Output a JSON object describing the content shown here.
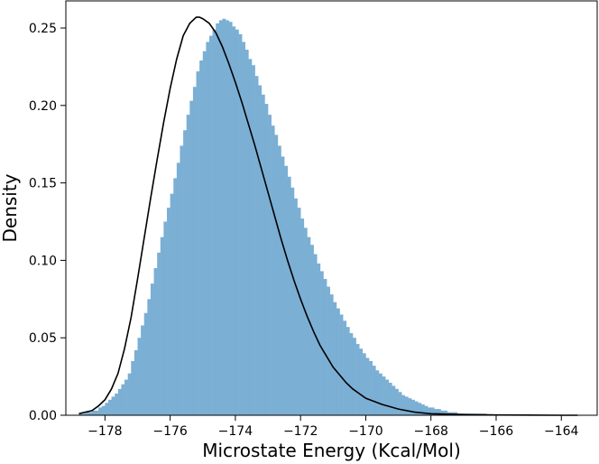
{
  "chart_data": {
    "type": "histogram",
    "title": "",
    "xlabel": "Microstate Energy (Kcal/Mol)",
    "ylabel": "Density",
    "xlim": [
      -179.2,
      -162.9
    ],
    "ylim": [
      0,
      0.2675
    ],
    "xticks": [
      -178,
      -176,
      -174,
      -172,
      -170,
      -168,
      -166,
      -164
    ],
    "xtick_labels": [
      "−178",
      "−176",
      "−174",
      "−172",
      "−170",
      "−168",
      "−166",
      "−164"
    ],
    "yticks": [
      0.0,
      0.05,
      0.1,
      0.15,
      0.2,
      0.25
    ],
    "ytick_labels": [
      "0.00",
      "0.05",
      "0.10",
      "0.15",
      "0.20",
      "0.25"
    ],
    "grid": false,
    "legend": "none",
    "colors": {
      "bars": "#7bafd4",
      "curve": "#000000",
      "axes": "#000000"
    },
    "histogram": {
      "bin_start": -178.8,
      "bin_width": 0.1,
      "density": [
        0.001,
        0.001,
        0.002,
        0.002,
        0.003,
        0.003,
        0.005,
        0.006,
        0.008,
        0.01,
        0.012,
        0.014,
        0.017,
        0.02,
        0.023,
        0.027,
        0.035,
        0.042,
        0.05,
        0.058,
        0.066,
        0.075,
        0.085,
        0.095,
        0.105,
        0.115,
        0.125,
        0.134,
        0.143,
        0.153,
        0.163,
        0.174,
        0.184,
        0.194,
        0.203,
        0.212,
        0.222,
        0.229,
        0.235,
        0.241,
        0.245,
        0.249,
        0.253,
        0.255,
        0.256,
        0.255,
        0.254,
        0.251,
        0.249,
        0.246,
        0.241,
        0.236,
        0.23,
        0.226,
        0.219,
        0.213,
        0.207,
        0.201,
        0.194,
        0.187,
        0.181,
        0.174,
        0.167,
        0.161,
        0.154,
        0.147,
        0.14,
        0.134,
        0.127,
        0.121,
        0.115,
        0.11,
        0.104,
        0.098,
        0.093,
        0.088,
        0.083,
        0.078,
        0.073,
        0.069,
        0.065,
        0.061,
        0.057,
        0.053,
        0.05,
        0.046,
        0.043,
        0.04,
        0.037,
        0.035,
        0.032,
        0.029,
        0.027,
        0.025,
        0.023,
        0.021,
        0.019,
        0.017,
        0.015,
        0.013,
        0.012,
        0.011,
        0.01,
        0.009,
        0.008,
        0.007,
        0.006,
        0.005,
        0.005,
        0.004,
        0.004,
        0.003,
        0.003,
        0.002,
        0.002,
        0.002,
        0.001,
        0.001,
        0.001,
        0.001,
        0.001,
        0.001,
        0.001,
        0.001,
        0.001
      ]
    },
    "fitted_curve": {
      "x": [
        -178.8,
        -178.6,
        -178.4,
        -178.2,
        -178.0,
        -177.8,
        -177.6,
        -177.4,
        -177.2,
        -177.0,
        -176.8,
        -176.6,
        -176.4,
        -176.2,
        -176.0,
        -175.8,
        -175.6,
        -175.4,
        -175.2,
        -175.1,
        -175.0,
        -174.8,
        -174.6,
        -174.4,
        -174.2,
        -174.0,
        -173.8,
        -173.6,
        -173.4,
        -173.2,
        -173.0,
        -172.8,
        -172.6,
        -172.4,
        -172.2,
        -172.0,
        -171.8,
        -171.6,
        -171.4,
        -171.2,
        -171.0,
        -170.8,
        -170.6,
        -170.4,
        -170.2,
        -170.0,
        -169.5,
        -169.0,
        -168.5,
        -168.0,
        -167.0,
        -166.0,
        -165.0,
        -164.0,
        -163.5
      ],
      "y": [
        0.001,
        0.002,
        0.003,
        0.006,
        0.01,
        0.017,
        0.027,
        0.043,
        0.063,
        0.088,
        0.114,
        0.14,
        0.165,
        0.189,
        0.211,
        0.23,
        0.245,
        0.253,
        0.257,
        0.257,
        0.256,
        0.253,
        0.247,
        0.238,
        0.227,
        0.215,
        0.202,
        0.188,
        0.174,
        0.159,
        0.144,
        0.129,
        0.114,
        0.1,
        0.087,
        0.075,
        0.064,
        0.054,
        0.045,
        0.038,
        0.031,
        0.026,
        0.021,
        0.017,
        0.014,
        0.011,
        0.007,
        0.004,
        0.002,
        0.001,
        0.0005,
        0.0002,
        0.0001,
        0.0,
        0.0
      ]
    }
  }
}
